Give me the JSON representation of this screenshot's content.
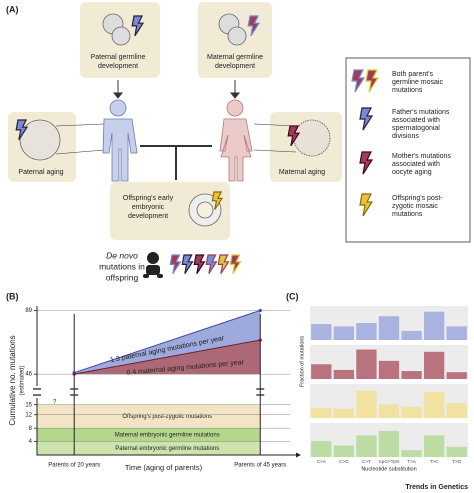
{
  "panel_a": {
    "label": "(A)",
    "paternal_germline": [
      "Paternal germline",
      "development"
    ],
    "maternal_germline": [
      "Maternal germline",
      "development"
    ],
    "paternal_aging": "Paternal aging",
    "maternal_aging": "Maternal aging",
    "offspring_development": [
      "Offspring's early",
      "embryonic",
      "development"
    ],
    "de_novo": [
      "De novo",
      "mutations in",
      "offspring"
    ],
    "legend": [
      [
        "Both parent's",
        "germline mosaic",
        "mutations"
      ],
      [
        "Father's mutations",
        "associated with",
        "spermatogonial",
        "divisions"
      ],
      [
        "Mother's mutations",
        "associated with",
        "oocyte aging"
      ],
      [
        "Offspring's post-",
        "zygotic mosaic",
        "mutations"
      ]
    ]
  },
  "chart_data": [
    {
      "type": "area",
      "label": "(B)",
      "ylabel": [
        "Cumulative no. mutations",
        "(estimated)"
      ],
      "xlabel": "Time (aging of parents)",
      "x": [
        20,
        45
      ],
      "xlim": [
        15,
        49
      ],
      "xticks": [
        {
          "value": 20,
          "label": "Parents of 20 years"
        },
        {
          "value": 45,
          "label": "Parents of 45 years"
        }
      ],
      "ylim": [
        0,
        92
      ],
      "ybreak": [
        17,
        38
      ],
      "yticks": [
        4,
        8,
        12,
        15,
        46,
        89
      ],
      "grid": true,
      "series": [
        {
          "name": "1.3 paternal aging mutations per year",
          "color": "#8d9ad6",
          "values": [
            47,
            89
          ]
        },
        {
          "name": "0.4 maternal aging mutations per year",
          "color": "#9e4e5e",
          "values": [
            46,
            69
          ]
        }
      ],
      "bands": [
        {
          "name": "Paternal embryonic germline mutations",
          "color": "#cde5ad",
          "value": 4
        },
        {
          "name": "Maternal embryonic germline mutations",
          "color": "#b4d78c",
          "value": 4
        },
        {
          "name": "Offspring's post-zygotic mutations",
          "color": "#f4e4c6",
          "value": 7
        }
      ],
      "annotations": [
        "?"
      ]
    },
    {
      "type": "bar",
      "facets": true,
      "label": "(C)",
      "ylabel": "Fraction of mutations",
      "xlabel": "Nucleotide substitution",
      "categories": [
        "C>A",
        "C>G",
        "C>T",
        "CpG>TpG",
        "T>A",
        "T>C",
        "T>G"
      ],
      "ylim": [
        0,
        0.3
      ],
      "series": [
        {
          "color": "#a9b3e0",
          "values": [
            0.14,
            0.12,
            0.15,
            0.21,
            0.08,
            0.25,
            0.12
          ]
        },
        {
          "color": "#b9737f",
          "values": [
            0.13,
            0.08,
            0.26,
            0.16,
            0.07,
            0.24,
            0.06
          ]
        },
        {
          "color": "#f1e2a2",
          "values": [
            0.09,
            0.08,
            0.24,
            0.12,
            0.1,
            0.23,
            0.13
          ]
        },
        {
          "color": "#bcdca4",
          "values": [
            0.14,
            0.1,
            0.19,
            0.23,
            0.06,
            0.19,
            0.09
          ]
        }
      ]
    }
  ],
  "footer": "Trends in Genetics"
}
